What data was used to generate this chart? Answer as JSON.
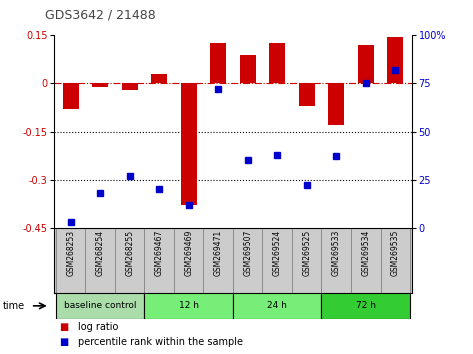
{
  "title": "GDS3642 / 21488",
  "samples": [
    "GSM268253",
    "GSM268254",
    "GSM268255",
    "GSM269467",
    "GSM269469",
    "GSM269471",
    "GSM269507",
    "GSM269524",
    "GSM269525",
    "GSM269533",
    "GSM269534",
    "GSM269535"
  ],
  "log_ratio": [
    -0.08,
    -0.01,
    -0.02,
    0.03,
    -0.38,
    0.125,
    0.09,
    0.125,
    -0.07,
    -0.13,
    0.12,
    0.145
  ],
  "percentile_rank": [
    3,
    18,
    27,
    20,
    12,
    72,
    35,
    38,
    22,
    37,
    75,
    82
  ],
  "ylim_left": [
    -0.45,
    0.15
  ],
  "ylim_right": [
    0,
    100
  ],
  "yticks_left": [
    0.15,
    0,
    -0.15,
    -0.3,
    -0.45
  ],
  "yticks_right": [
    100,
    75,
    50,
    25,
    0
  ],
  "dotted_lines": [
    -0.15,
    -0.3
  ],
  "bar_color": "#cc0000",
  "dot_color": "#0000cc",
  "groups": [
    {
      "label": "baseline control",
      "start": 0,
      "end": 3,
      "color": "#aaddaa"
    },
    {
      "label": "12 h",
      "start": 3,
      "end": 6,
      "color": "#77ee77"
    },
    {
      "label": "24 h",
      "start": 6,
      "end": 9,
      "color": "#77ee77"
    },
    {
      "label": "72 h",
      "start": 9,
      "end": 12,
      "color": "#33cc33"
    }
  ],
  "time_label": "time",
  "legend_bar_label": "log ratio",
  "legend_dot_label": "percentile rank within the sample",
  "background_color": "#ffffff",
  "tick_gray": "#cccccc"
}
